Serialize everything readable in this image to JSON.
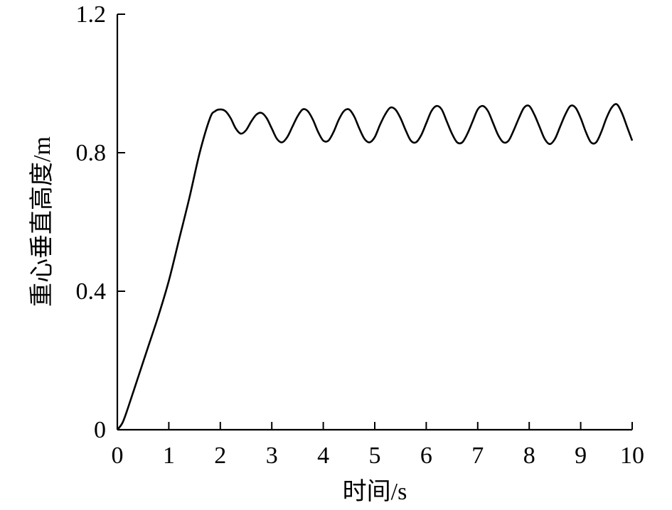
{
  "chart_data": {
    "type": "line",
    "xlabel": "时间/s",
    "ylabel": "重心垂直高度/m",
    "xlim": [
      0,
      10
    ],
    "ylim": [
      0,
      1.2
    ],
    "x_ticks": [
      "0",
      "1",
      "2",
      "3",
      "4",
      "5",
      "6",
      "7",
      "8",
      "9",
      "10"
    ],
    "y_ticks": [
      "0",
      "0.4",
      "0.8",
      "1.2"
    ],
    "grid": false,
    "line_color": "#000000",
    "series": [
      {
        "x": [
          0,
          0.1,
          0.2,
          0.4,
          0.6,
          0.8,
          1.0,
          1.2,
          1.4,
          1.6,
          1.8,
          1.9,
          2.0,
          2.1,
          2.2,
          2.3,
          2.4,
          2.5,
          2.6,
          2.7,
          2.8,
          2.9,
          3.0,
          3.1,
          3.2,
          3.3,
          3.4,
          3.5,
          3.6,
          3.7,
          3.8,
          3.9,
          4.0,
          4.1,
          4.2,
          4.3,
          4.4,
          4.5,
          4.6,
          4.7,
          4.8,
          4.9,
          5.0,
          5.1,
          5.2,
          5.3,
          5.4,
          5.5,
          5.6,
          5.7,
          5.8,
          5.9,
          6.0,
          6.1,
          6.2,
          6.3,
          6.4,
          6.5,
          6.6,
          6.7,
          6.8,
          6.9,
          7.0,
          7.1,
          7.2,
          7.3,
          7.4,
          7.5,
          7.6,
          7.7,
          7.8,
          7.9,
          8.0,
          8.1,
          8.2,
          8.3,
          8.4,
          8.5,
          8.6,
          8.7,
          8.8,
          8.9,
          9.0,
          9.1,
          9.2,
          9.3,
          9.4,
          9.5,
          9.6,
          9.7,
          9.8,
          9.9,
          10.0
        ],
        "values": [
          0,
          0.02,
          0.06,
          0.15,
          0.24,
          0.33,
          0.43,
          0.55,
          0.67,
          0.8,
          0.9,
          0.92,
          0.925,
          0.92,
          0.9,
          0.87,
          0.855,
          0.865,
          0.89,
          0.91,
          0.915,
          0.9,
          0.87,
          0.84,
          0.83,
          0.845,
          0.875,
          0.905,
          0.925,
          0.92,
          0.895,
          0.86,
          0.835,
          0.835,
          0.86,
          0.895,
          0.92,
          0.925,
          0.905,
          0.87,
          0.84,
          0.83,
          0.845,
          0.88,
          0.91,
          0.93,
          0.925,
          0.9,
          0.865,
          0.835,
          0.83,
          0.85,
          0.885,
          0.92,
          0.935,
          0.925,
          0.89,
          0.855,
          0.83,
          0.83,
          0.855,
          0.89,
          0.925,
          0.935,
          0.92,
          0.885,
          0.85,
          0.83,
          0.835,
          0.865,
          0.9,
          0.93,
          0.935,
          0.91,
          0.875,
          0.84,
          0.825,
          0.84,
          0.875,
          0.91,
          0.935,
          0.93,
          0.9,
          0.86,
          0.83,
          0.83,
          0.86,
          0.9,
          0.93,
          0.94,
          0.915,
          0.875,
          0.835
        ]
      }
    ]
  }
}
